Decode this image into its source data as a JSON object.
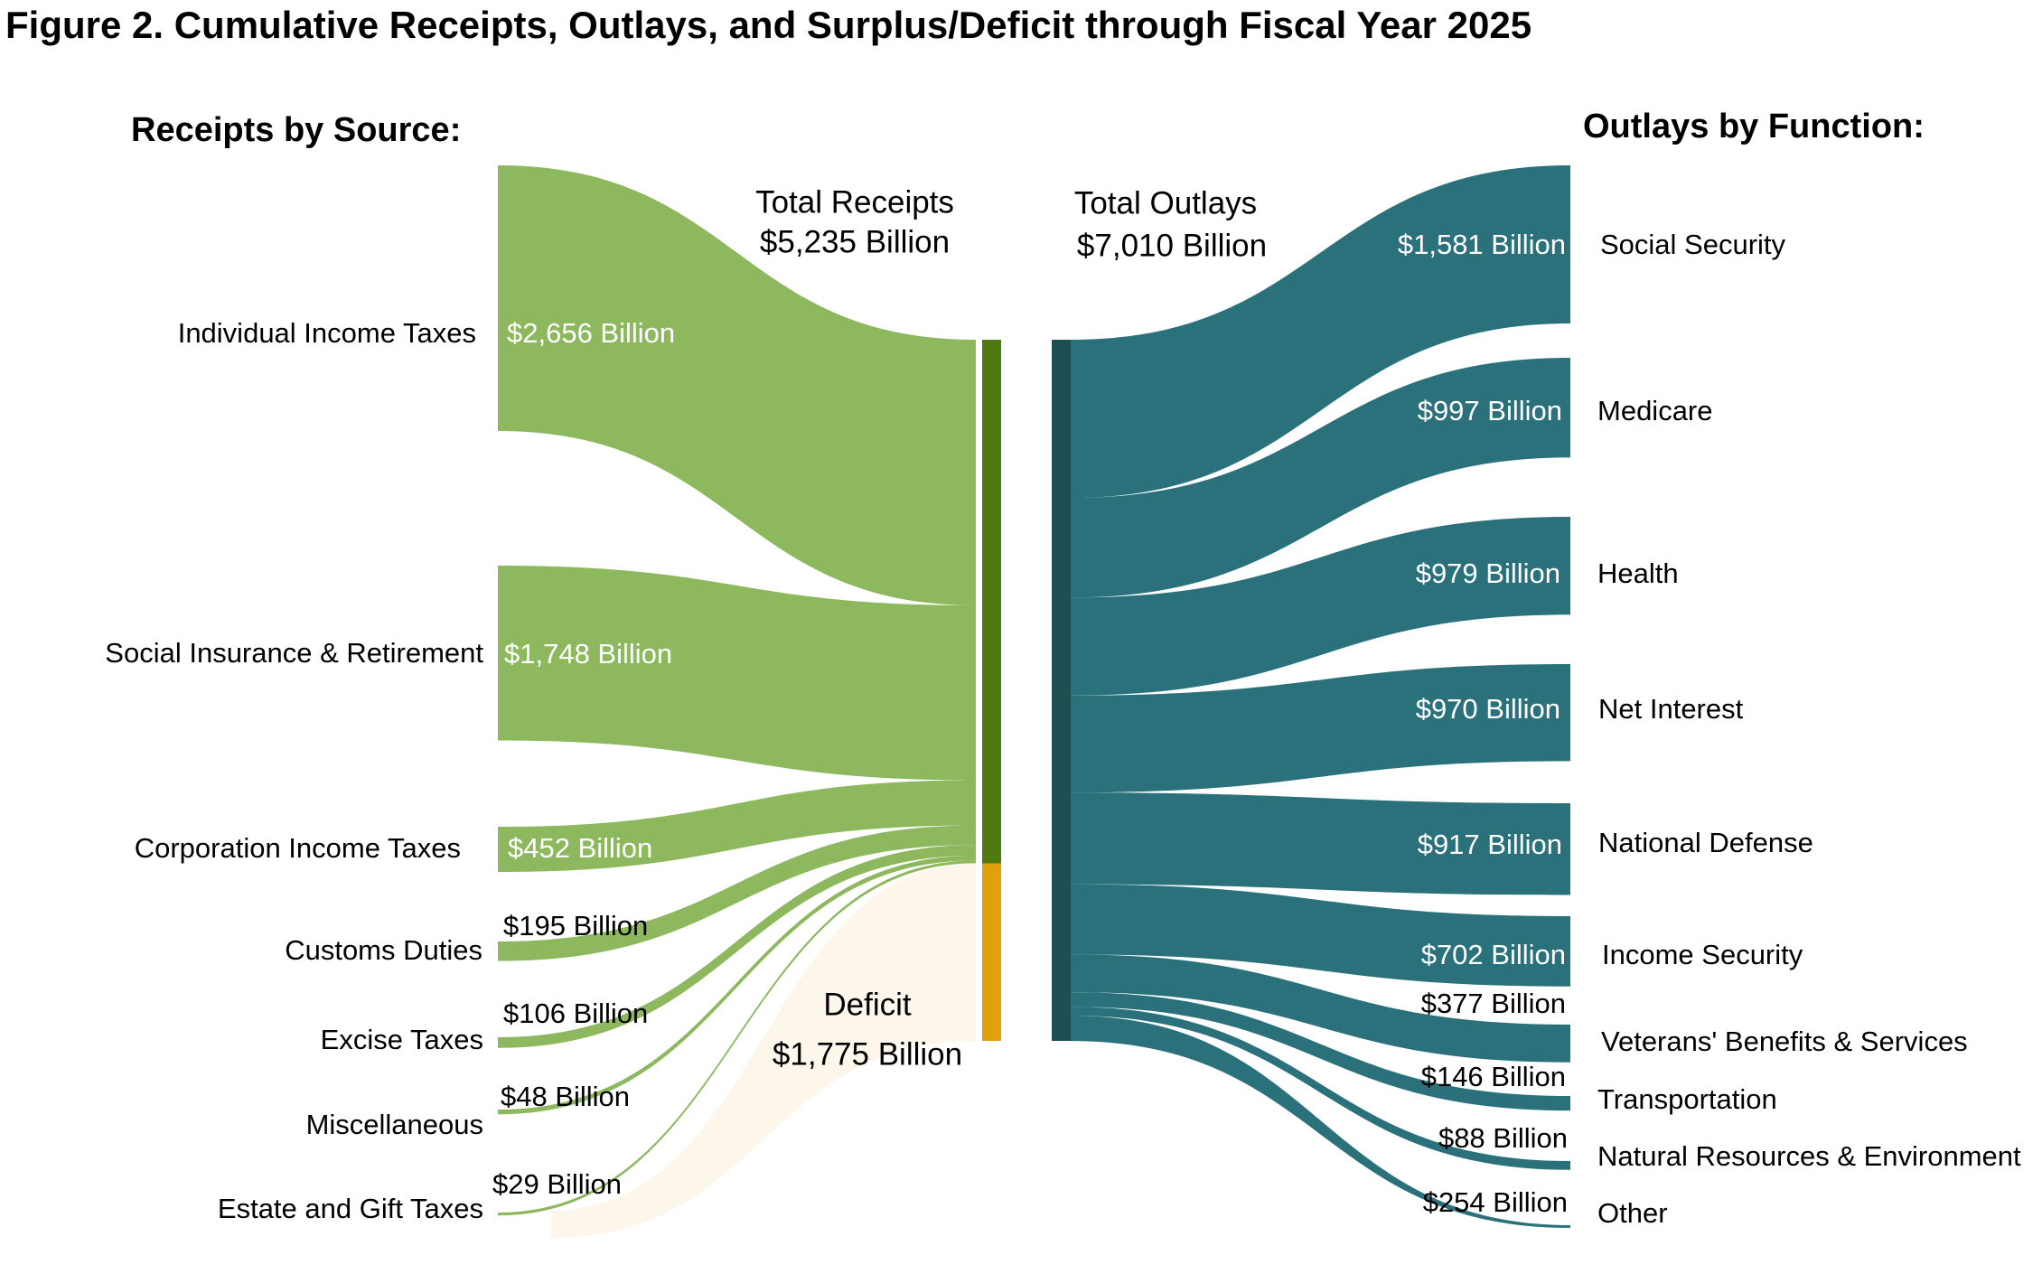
{
  "figure_title": "Figure 2. Cumulative Receipts, Outlays, and Surplus/Deficit through Fiscal Year 2025",
  "colors": {
    "receipts_flow": "#8db85e",
    "receipts_bar": "#4e7a10",
    "deficit_bar": "#e0a10a",
    "deficit_flow": "#f6e9c2",
    "outlays_flow": "#2a717c",
    "outlays_bar": "#1f4e53"
  },
  "chart_data": {
    "type": "sankey",
    "units": "Billion USD",
    "receipts_heading": "Receipts by Source:",
    "outlays_heading": "Outlays by Function:",
    "total_receipts": {
      "label_line1": "Total Receipts",
      "label_line2": "$5,235 Billion",
      "value": 5235
    },
    "total_outlays": {
      "label_line1": "Total Outlays",
      "label_line2": "$7,010 Billion",
      "value": 7010
    },
    "deficit": {
      "label_line1": "Deficit",
      "label_line2": "$1,775 Billion",
      "value": 1775
    },
    "receipts": [
      {
        "name": "Individual Income Taxes",
        "value": 2656,
        "value_label": "$2,656 Billion"
      },
      {
        "name": "Social Insurance & Retirement",
        "value": 1748,
        "value_label": "$1,748 Billion"
      },
      {
        "name": "Corporation Income Taxes",
        "value": 452,
        "value_label": "$452 Billion"
      },
      {
        "name": "Customs Duties",
        "value": 195,
        "value_label": "$195 Billion"
      },
      {
        "name": "Excise Taxes",
        "value": 106,
        "value_label": "$106 Billion"
      },
      {
        "name": "Miscellaneous",
        "value": 48,
        "value_label": "$48 Billion"
      },
      {
        "name": "Estate and Gift Taxes",
        "value": 29,
        "value_label": "$29 Billion"
      }
    ],
    "outlays": [
      {
        "name": "Social Security",
        "value": 1581,
        "value_label": "$1,581 Billion"
      },
      {
        "name": "Medicare",
        "value": 997,
        "value_label": "$997 Billion"
      },
      {
        "name": "Health",
        "value": 979,
        "value_label": "$979 Billion"
      },
      {
        "name": "Net Interest",
        "value": 970,
        "value_label": "$970 Billion"
      },
      {
        "name": "National Defense",
        "value": 917,
        "value_label": "$917 Billion"
      },
      {
        "name": "Income Security",
        "value": 702,
        "value_label": "$702 Billion"
      },
      {
        "name": "Veterans' Benefits & Services",
        "value": 377,
        "value_label": "$377 Billion"
      },
      {
        "name": "Transportation",
        "value": 146,
        "value_label": "$146 Billion"
      },
      {
        "name": "Natural Resources & Environment",
        "value": 88,
        "value_label": "$88 Billion"
      },
      {
        "name": "Other",
        "value": 254,
        "value_label": "$254 Billion"
      }
    ]
  }
}
